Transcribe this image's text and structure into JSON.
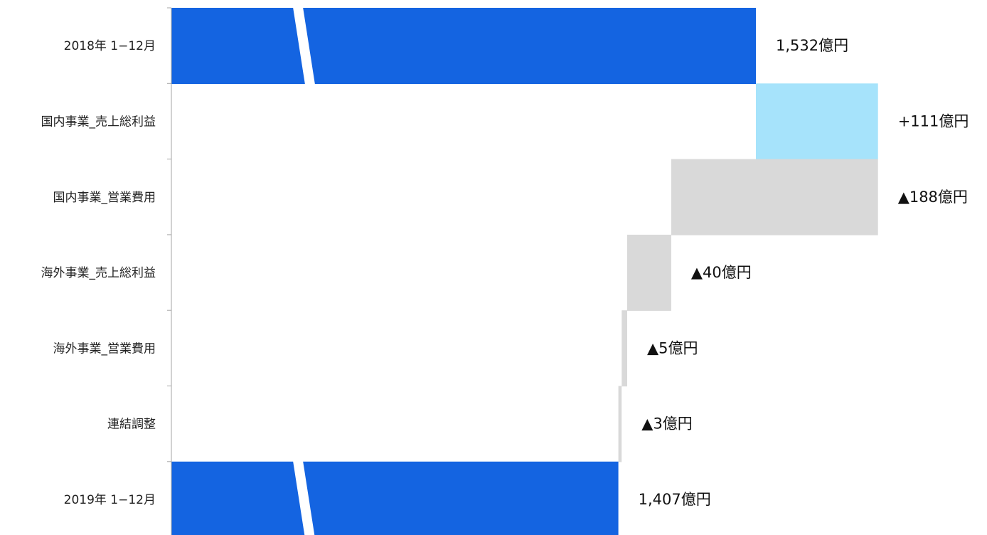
{
  "chart_data": {
    "type": "bar",
    "orientation": "horizontal-waterfall",
    "categories": [
      "2018年 1−12月",
      "国内事業_売上総利益",
      "国内事業_営業費用",
      "海外事業_売上総利益",
      "海外事業_営業費用",
      "連結調整",
      "2019年 1−12月"
    ],
    "values": [
      1532,
      111,
      -188,
      -40,
      -5,
      -3,
      1407
    ],
    "value_labels": [
      "1,532億円",
      "+111億円",
      "▲188億円",
      "▲40億円",
      "▲5億円",
      "▲3億円",
      "1,407億円"
    ],
    "bar_kinds": [
      "total",
      "increase",
      "decrease",
      "decrease",
      "decrease",
      "decrease",
      "total"
    ],
    "axis_break": true,
    "grid": false,
    "legend": "none",
    "colors": {
      "total": "#1464e1",
      "increase": "#a6e3fb",
      "decrease": "#d9d9d9",
      "axis": "#a6a6a6"
    }
  }
}
